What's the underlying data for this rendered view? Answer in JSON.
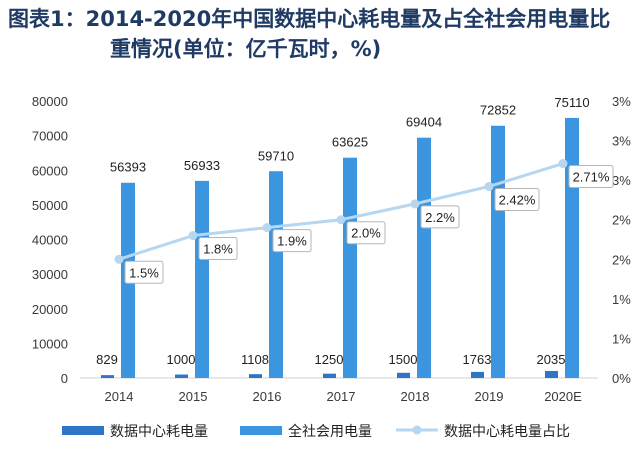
{
  "colors": {
    "bar_dc": "#2e75c7",
    "bar_total": "#3c95df",
    "line": "#b7d6ef",
    "title": "#1f3a63",
    "text": "#3a3a3a"
  },
  "chart_data": {
    "type": "bar",
    "title_line1": "图表1：2014-2020年中国数据中心耗电量及占全社会用电量比",
    "title_line2": "重情况(单位：亿千瓦时，%)",
    "categories": [
      "2014",
      "2015",
      "2016",
      "2017",
      "2018",
      "2019",
      "2020E"
    ],
    "series": [
      {
        "name": "数据中心耗电量",
        "values": [
          829,
          1000,
          1108,
          1250,
          1500,
          1763,
          2035
        ]
      },
      {
        "name": "全社会用电量",
        "values": [
          56393,
          56933,
          59710,
          63625,
          69404,
          72852,
          75110
        ]
      },
      {
        "name": "数据中心耗电量占比",
        "values": [
          1.5,
          1.8,
          1.9,
          2.0,
          2.2,
          2.42,
          2.71
        ],
        "labels": [
          "1.5%",
          "1.8%",
          "1.9%",
          "2.0%",
          "2.2%",
          "2.42%",
          "2.71%"
        ]
      }
    ],
    "ylim": [
      0,
      80000
    ],
    "yticks": [
      "0",
      "10000",
      "20000",
      "30000",
      "40000",
      "50000",
      "60000",
      "70000",
      "80000"
    ],
    "y2lim": [
      0,
      3.5
    ],
    "y2ticks": [
      "0%",
      "1%",
      "1%",
      "2%",
      "2%",
      "3%",
      "3%",
      "3%"
    ],
    "legend_position": "bottom"
  }
}
